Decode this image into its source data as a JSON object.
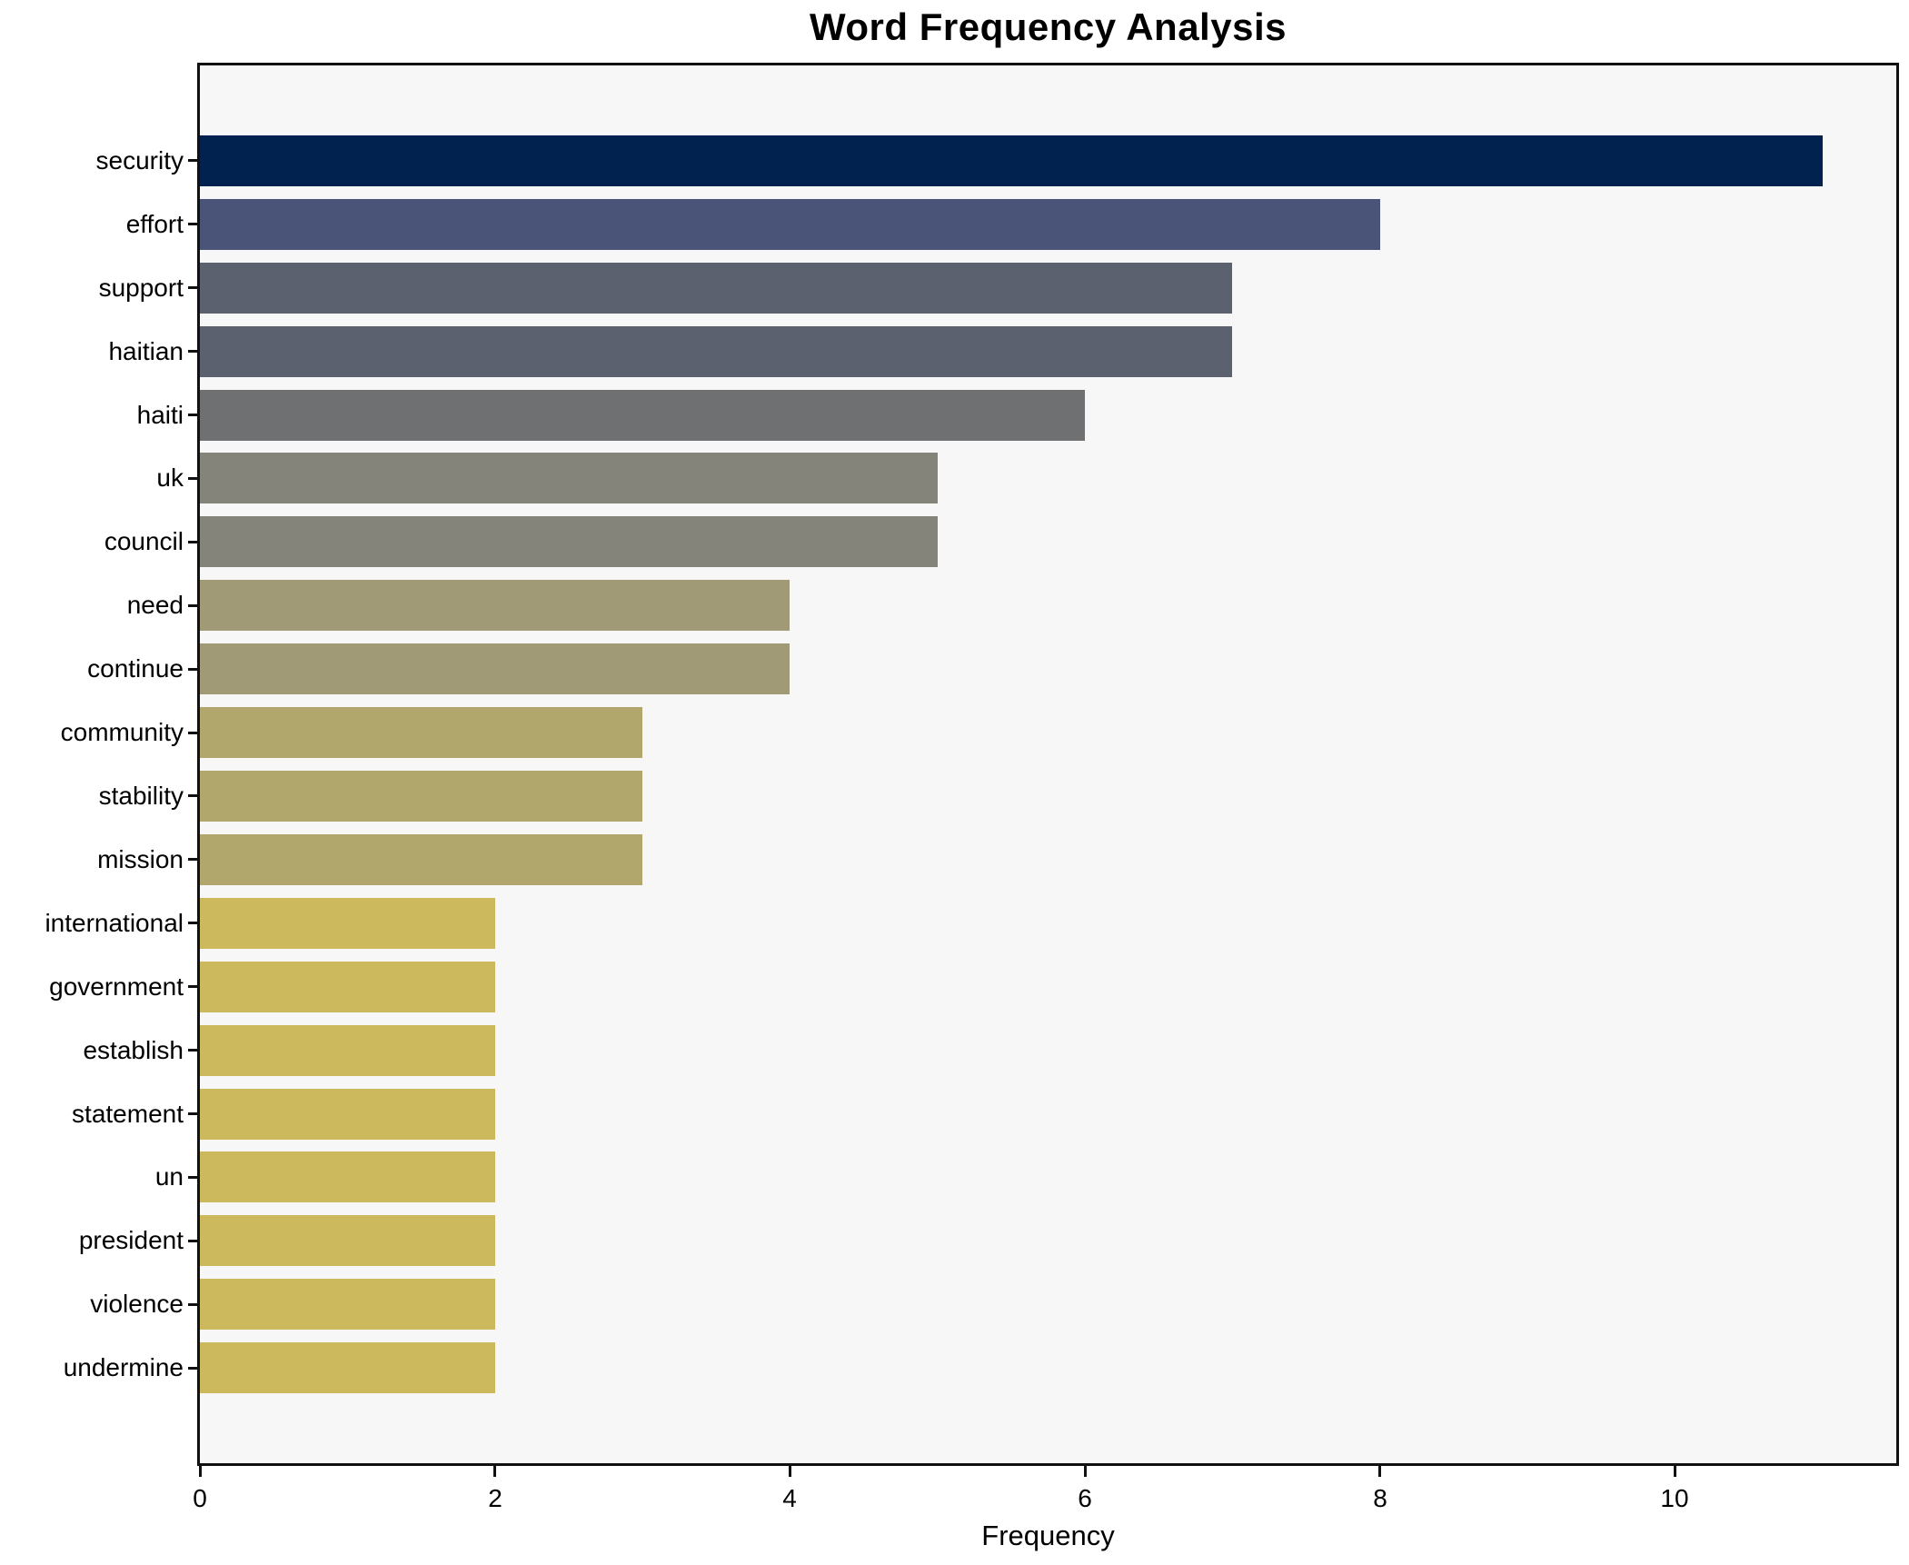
{
  "chart_data": {
    "type": "bar",
    "orientation": "horizontal",
    "title": "Word Frequency Analysis",
    "xlabel": "Frequency",
    "ylabel": "",
    "categories": [
      "security",
      "effort",
      "support",
      "haitian",
      "haiti",
      "uk",
      "council",
      "need",
      "continue",
      "community",
      "stability",
      "mission",
      "international",
      "government",
      "establish",
      "statement",
      "un",
      "president",
      "violence",
      "undermine"
    ],
    "values": [
      11,
      8,
      7,
      7,
      6,
      5,
      5,
      4,
      4,
      3,
      3,
      3,
      2,
      2,
      2,
      2,
      2,
      2,
      2,
      2
    ],
    "bar_colors": [
      "#01224e",
      "#4a5478",
      "#5c6170",
      "#5c6170",
      "#6f7072",
      "#85847a",
      "#85847a",
      "#a09a77",
      "#a09a77",
      "#b1a66b",
      "#b1a66b",
      "#b1a66b",
      "#ccb95e",
      "#ccb95e",
      "#ccb95e",
      "#ccb95e",
      "#ccb95e",
      "#ccb95e",
      "#ccb95e",
      "#ccb95e"
    ],
    "xlim": [
      0,
      11.5
    ],
    "xticks": [
      0,
      2,
      4,
      6,
      8,
      10
    ],
    "grid": false,
    "legend": null,
    "plot_background": "#f7f7f8",
    "figure_background": "#ffffff",
    "spine_color": "#111111",
    "bar_height_fraction": 0.8
  }
}
